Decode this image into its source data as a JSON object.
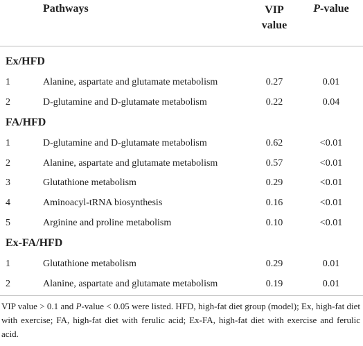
{
  "header": {
    "pathways": "Pathways",
    "vip": [
      "VIP",
      "value"
    ],
    "pvalue": {
      "italic": "P",
      "text": "-value"
    }
  },
  "groups": [
    {
      "label": "Ex/HFD",
      "rows": [
        [
          "1",
          "Alanine, aspartate and glutamate metabolism",
          "0.27",
          "0.01"
        ],
        [
          "2",
          "D-glutamine and D-glutamate metabolism",
          "0.22",
          "0.04"
        ]
      ]
    },
    {
      "label": "FA/HFD",
      "rows": [
        [
          "1",
          "D-glutamine and D-glutamate metabolism",
          "0.62",
          "<0.01"
        ],
        [
          "2",
          "Alanine, aspartate and glutamate metabolism",
          "0.57",
          "<0.01"
        ],
        [
          "3",
          "Glutathione metabolism",
          "0.29",
          "<0.01"
        ],
        [
          "4",
          "Aminoacyl-tRNA biosynthesis",
          "0.16",
          "<0.01"
        ],
        [
          "5",
          "Arginine and proline metabolism",
          "0.10",
          "<0.01"
        ]
      ]
    },
    {
      "label": "Ex-FA/HFD",
      "rows": [
        [
          "1",
          "Glutathione metabolism",
          "0.29",
          "0.01"
        ],
        [
          "2",
          "Alanine, aspartate and glutamate metabolism",
          "0.19",
          "0.01"
        ]
      ]
    }
  ],
  "footnote": [
    "VIP value > 0.1 and ",
    "P",
    "-value < 0.05 were listed. HFD, high-fat diet group (model); Ex, high-fat diet with exercise; FA, high-fat diet with ferulic acid; Ex-FA, high-fat diet with exercise and ferulic acid."
  ]
}
